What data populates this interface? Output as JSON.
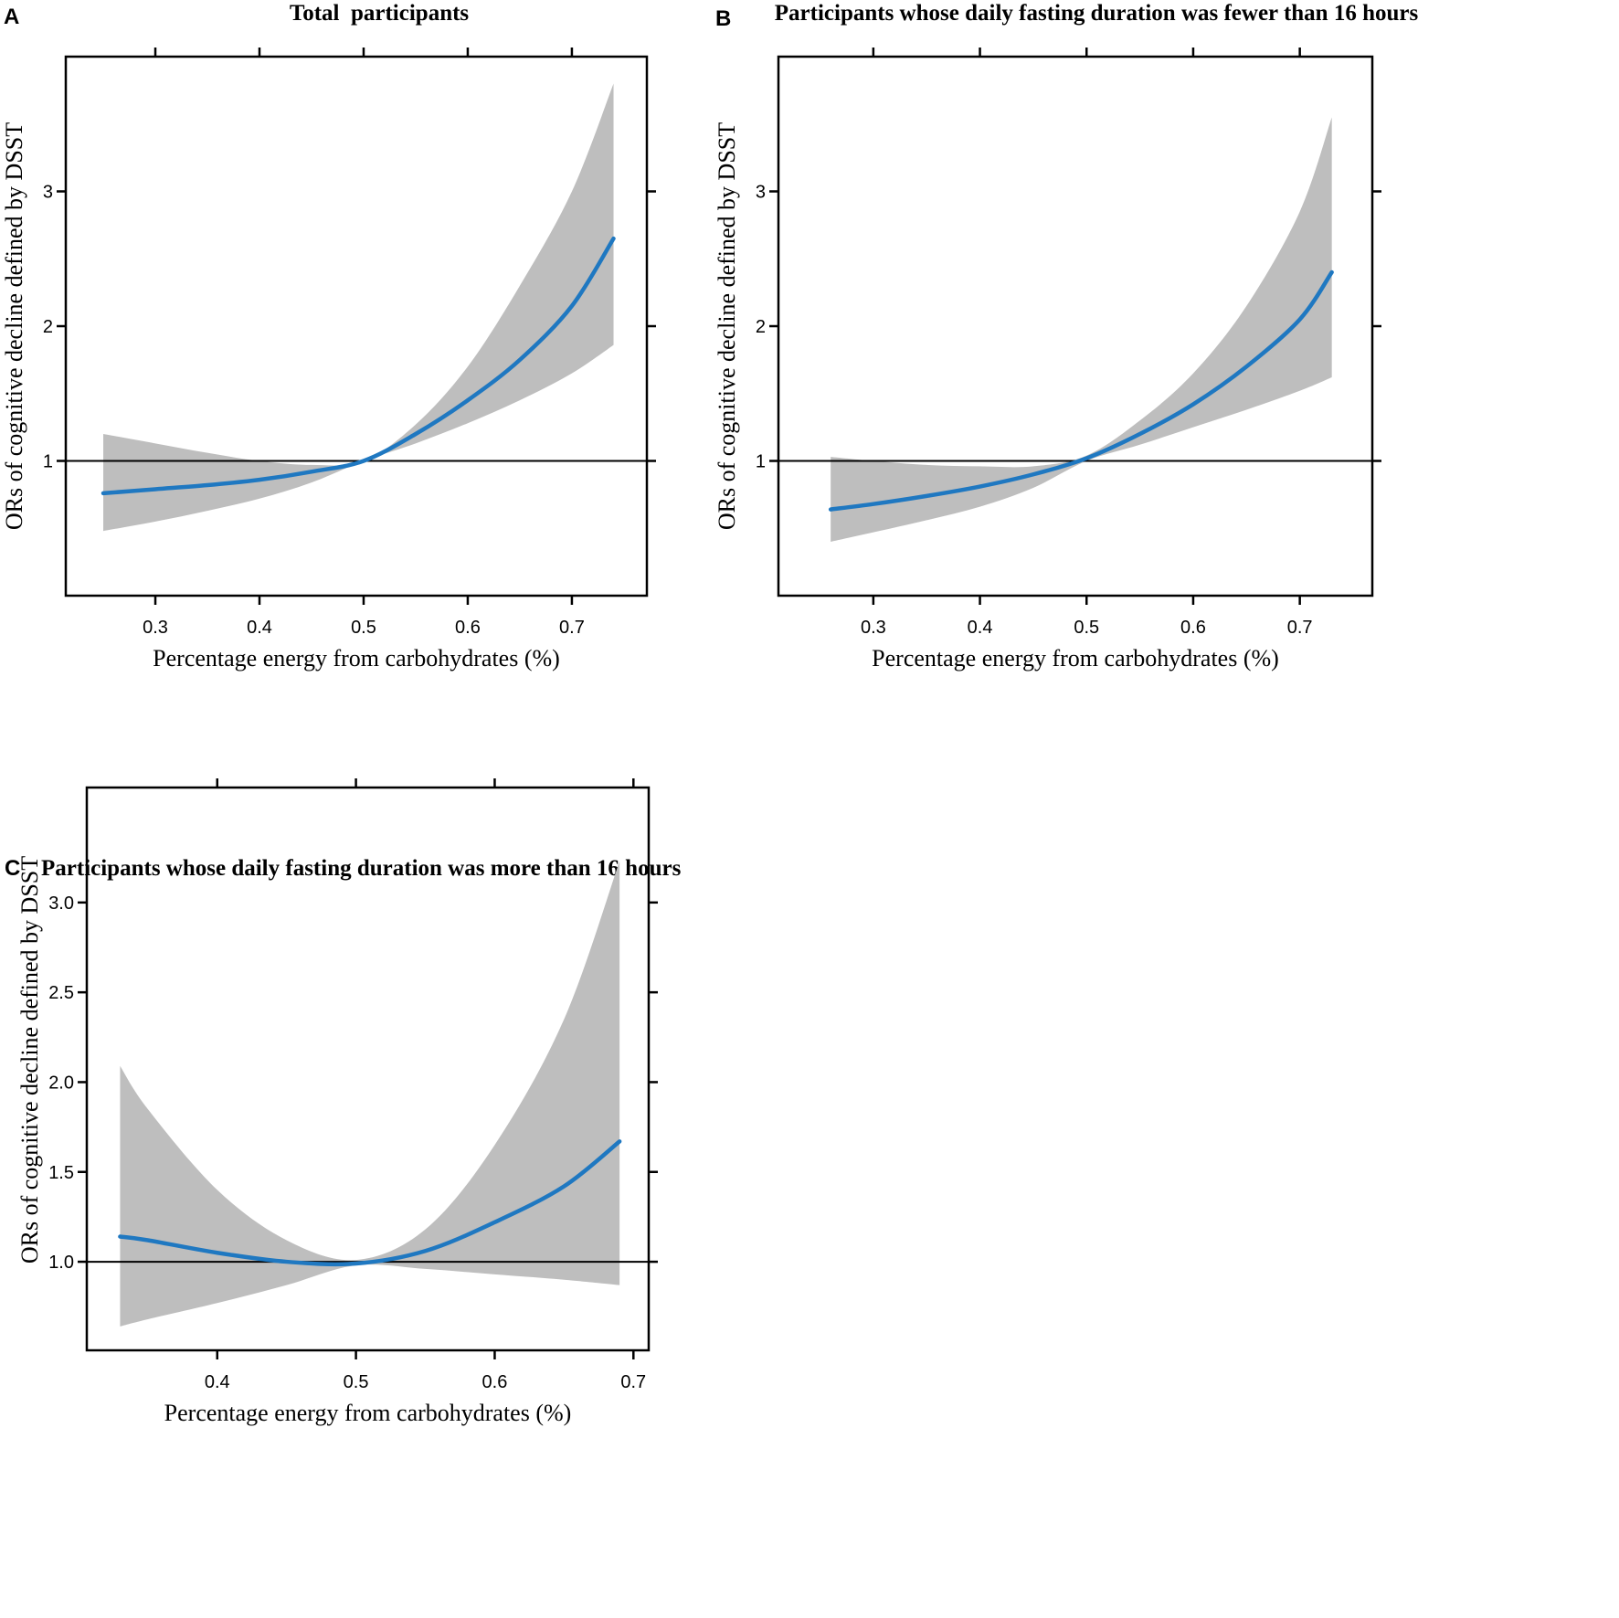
{
  "colors": {
    "line": "#1f78c1",
    "band": "#bebebe",
    "axis": "#000000"
  },
  "chart_data": [
    {
      "type": "line",
      "panel": "A",
      "title": "Total  participants",
      "xlabel": "Percentage energy from carbohydrates (%)",
      "ylabel": "ORs of cognitive decline defined by DSST",
      "xlim": [
        0.214,
        0.772
      ],
      "ylim": [
        0,
        4
      ],
      "xticks": [
        0.3,
        0.4,
        0.5,
        0.6,
        0.7
      ],
      "xtick_labels": [
        "0.3",
        "0.4",
        "0.5",
        "0.6",
        "0.7"
      ],
      "yticks": [
        1,
        2,
        3
      ],
      "ytick_labels": [
        "1",
        "2",
        "3"
      ],
      "reference_line": 1,
      "x": [
        0.25,
        0.3,
        0.35,
        0.4,
        0.45,
        0.5,
        0.55,
        0.6,
        0.65,
        0.7,
        0.74
      ],
      "y": [
        0.76,
        0.79,
        0.82,
        0.86,
        0.92,
        1.0,
        1.2,
        1.45,
        1.75,
        2.15,
        2.65
      ],
      "lower": [
        0.48,
        0.55,
        0.63,
        0.72,
        0.84,
        1.0,
        1.13,
        1.28,
        1.45,
        1.65,
        1.86
      ],
      "upper": [
        1.2,
        1.13,
        1.06,
        1.0,
        0.97,
        1.0,
        1.27,
        1.7,
        2.3,
        3.0,
        3.8
      ]
    },
    {
      "type": "line",
      "panel": "B",
      "title": "Participants whose daily fasting duration was fewer than 16 hours",
      "xlabel": "Percentage energy from carbohydrates (%)",
      "ylabel": "ORs of cognitive decline defined by DSST",
      "xlim": [
        0.211,
        0.768
      ],
      "ylim": [
        0,
        4
      ],
      "xticks": [
        0.3,
        0.4,
        0.5,
        0.6,
        0.7
      ],
      "xtick_labels": [
        "0.3",
        "0.4",
        "0.5",
        "0.6",
        "0.7"
      ],
      "yticks": [
        1,
        2,
        3
      ],
      "ytick_labels": [
        "1",
        "2",
        "3"
      ],
      "reference_line": 1,
      "x": [
        0.26,
        0.3,
        0.35,
        0.4,
        0.45,
        0.5,
        0.55,
        0.6,
        0.65,
        0.7,
        0.73
      ],
      "y": [
        0.64,
        0.68,
        0.74,
        0.81,
        0.9,
        1.02,
        1.2,
        1.42,
        1.7,
        2.05,
        2.4
      ],
      "lower": [
        0.4,
        0.47,
        0.56,
        0.66,
        0.8,
        1.0,
        1.12,
        1.25,
        1.38,
        1.52,
        1.62
      ],
      "upper": [
        1.03,
        1.0,
        0.97,
        0.96,
        0.96,
        1.04,
        1.3,
        1.65,
        2.15,
        2.85,
        3.55
      ]
    },
    {
      "type": "line",
      "panel": "C",
      "title": "Participants whose daily fasting duration was more than 16 hours",
      "xlabel": "Percentage energy from carbohydrates (%)",
      "ylabel": "ORs of cognitive decline defined by DSST",
      "xlim": [
        0.306,
        0.711
      ],
      "ylim": [
        0.507,
        3.64
      ],
      "xticks": [
        0.4,
        0.5,
        0.6,
        0.7
      ],
      "xtick_labels": [
        "0.4",
        "0.5",
        "0.6",
        "0.7"
      ],
      "yticks": [
        1.0,
        1.5,
        2.0,
        2.5,
        3.0
      ],
      "ytick_labels": [
        "1.0",
        "1.5",
        "2.0",
        "2.5",
        "3.0"
      ],
      "reference_line": 1,
      "x": [
        0.33,
        0.35,
        0.4,
        0.45,
        0.5,
        0.55,
        0.6,
        0.65,
        0.69
      ],
      "y": [
        1.14,
        1.12,
        1.05,
        1.0,
        0.99,
        1.06,
        1.22,
        1.42,
        1.67
      ],
      "lower": [
        0.64,
        0.68,
        0.77,
        0.87,
        0.98,
        0.96,
        0.93,
        0.9,
        0.87
      ],
      "upper": [
        2.09,
        1.85,
        1.4,
        1.12,
        1.01,
        1.18,
        1.65,
        2.35,
        3.23
      ]
    }
  ]
}
